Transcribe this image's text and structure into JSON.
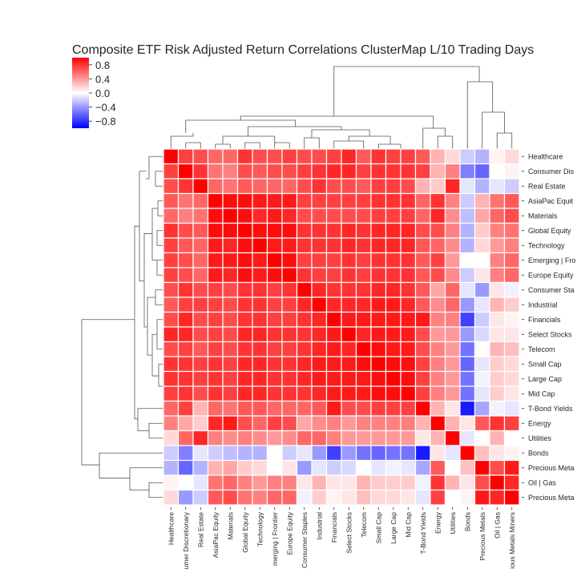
{
  "chart_data": {
    "type": "heatmap",
    "title": "Composite ETF Risk Adjusted Return Correlations ClusterMap L/10 Trading Days",
    "labels": [
      "Healthcare",
      "Consumer Discretionary",
      "Real Estate",
      "AsiaPac Equity",
      "Materials",
      "Global Equity",
      "Technology",
      "Emerging | Frontier",
      "Europe Equity",
      "Consumer Staples",
      "Industrial",
      "Financials",
      "Select Stocks",
      "Telecom",
      "Small Cap",
      "Large Cap",
      "Mid Cap",
      "T-Bond Yields",
      "Energy",
      "Utilities",
      "Bonds",
      "Precious Metals",
      "Oil | Gas",
      "Precious Metals Miners"
    ],
    "row_labels_shown": [
      "Healthcare",
      "Consumer Dis",
      "Real Estate",
      "AsiaPac Equit",
      "Materials",
      "Global Equity",
      "Technology",
      "Emerging | Fro",
      "Europe Equity",
      "Consumer Sta",
      "Industrial",
      "Financials",
      "Select Stocks",
      "Telecom",
      "Small Cap",
      "Large Cap",
      "Mid Cap",
      "T-Bond Yields",
      "Energy",
      "Utilities",
      "Bonds",
      "Precious Meta",
      "Oil | Gas",
      "Precious Meta"
    ],
    "col_labels_shown": [
      "Healthcare",
      "umer Discretionary",
      "Real Estate",
      "AsiaPac Equity",
      "Materials",
      "Global Equity",
      "Technology",
      "merging | Frontier",
      "Europe Equity",
      "Consumer Staples",
      "Industrial",
      "Financials",
      "Select Stocks",
      "Telecom",
      "Small Cap",
      "Large Cap",
      "Mid Cap",
      "T-Bond Yields",
      "Energy",
      "Utilities",
      "Bonds",
      "Precious Metals",
      "Oil | Gas",
      "ious Metals Miners"
    ],
    "values": [
      [
        1.0,
        0.75,
        0.7,
        0.6,
        0.6,
        0.8,
        0.7,
        0.7,
        0.75,
        0.7,
        0.7,
        0.75,
        0.85,
        0.65,
        0.8,
        0.75,
        0.75,
        0.65,
        0.3,
        0.15,
        -0.2,
        -0.3,
        0.05,
        0.15
      ],
      [
        0.75,
        1.0,
        0.8,
        0.55,
        0.5,
        0.7,
        0.65,
        0.7,
        0.7,
        0.75,
        0.8,
        0.85,
        0.85,
        0.75,
        0.8,
        0.8,
        0.8,
        0.75,
        0.3,
        0.5,
        -0.5,
        -0.6,
        0.0,
        0.05
      ],
      [
        0.7,
        0.8,
        1.0,
        0.6,
        0.55,
        0.65,
        0.6,
        0.6,
        0.6,
        0.7,
        0.8,
        0.7,
        0.7,
        0.65,
        0.75,
        0.75,
        0.7,
        0.3,
        0.2,
        0.85,
        -0.1,
        -0.3,
        -0.1,
        -0.2
      ],
      [
        0.65,
        0.55,
        0.6,
        1.0,
        0.95,
        0.95,
        0.9,
        0.9,
        0.9,
        0.75,
        0.75,
        0.75,
        0.75,
        0.75,
        0.8,
        0.8,
        0.8,
        0.6,
        0.8,
        0.5,
        -0.2,
        0.3,
        0.55,
        0.65
      ],
      [
        0.6,
        0.5,
        0.55,
        0.95,
        1.0,
        0.95,
        0.85,
        0.9,
        0.85,
        0.7,
        0.7,
        0.7,
        0.7,
        0.7,
        0.75,
        0.75,
        0.75,
        0.6,
        0.85,
        0.45,
        -0.25,
        0.35,
        0.6,
        0.7
      ],
      [
        0.8,
        0.7,
        0.65,
        0.95,
        0.95,
        1.0,
        0.95,
        0.95,
        0.95,
        0.8,
        0.8,
        0.8,
        0.85,
        0.8,
        0.85,
        0.85,
        0.85,
        0.7,
        0.7,
        0.5,
        -0.3,
        0.2,
        0.5,
        0.55
      ],
      [
        0.75,
        0.65,
        0.6,
        0.9,
        0.85,
        0.95,
        1.0,
        0.9,
        0.9,
        0.8,
        0.8,
        0.8,
        0.85,
        0.8,
        0.85,
        0.85,
        0.85,
        0.65,
        0.6,
        0.45,
        -0.3,
        0.15,
        0.4,
        0.5
      ],
      [
        0.75,
        0.7,
        0.6,
        0.9,
        0.9,
        0.95,
        0.9,
        1.0,
        0.95,
        0.75,
        0.75,
        0.75,
        0.8,
        0.75,
        0.8,
        0.8,
        0.8,
        0.65,
        0.75,
        0.4,
        0.0,
        0.0,
        0.5,
        0.6
      ],
      [
        0.75,
        0.7,
        0.6,
        0.9,
        0.85,
        0.95,
        0.9,
        0.95,
        1.0,
        0.8,
        0.75,
        0.75,
        0.8,
        0.75,
        0.8,
        0.8,
        0.8,
        0.65,
        0.7,
        0.45,
        -0.2,
        0.1,
        0.5,
        0.6
      ],
      [
        0.7,
        0.8,
        0.7,
        0.75,
        0.7,
        0.8,
        0.8,
        0.75,
        0.8,
        1.0,
        0.85,
        0.8,
        0.8,
        0.8,
        0.85,
        0.85,
        0.8,
        0.65,
        0.35,
        0.6,
        -0.1,
        -0.4,
        0.1,
        -0.05
      ],
      [
        0.65,
        0.75,
        0.75,
        0.75,
        0.7,
        0.8,
        0.8,
        0.75,
        0.75,
        0.85,
        1.0,
        0.85,
        0.85,
        0.85,
        0.9,
        0.9,
        0.85,
        0.65,
        0.45,
        0.6,
        -0.4,
        -0.1,
        0.3,
        0.2
      ],
      [
        0.7,
        0.85,
        0.7,
        0.75,
        0.7,
        0.8,
        0.8,
        0.75,
        0.75,
        0.8,
        0.85,
        1.0,
        0.9,
        0.9,
        0.9,
        0.9,
        0.9,
        0.9,
        0.5,
        0.5,
        -0.75,
        -0.2,
        0.1,
        0.05
      ],
      [
        0.85,
        0.85,
        0.7,
        0.75,
        0.7,
        0.85,
        0.85,
        0.8,
        0.8,
        0.8,
        0.85,
        0.9,
        1.0,
        0.85,
        0.9,
        0.9,
        0.9,
        0.7,
        0.4,
        0.4,
        -0.4,
        -0.15,
        0.1,
        0.1
      ],
      [
        0.7,
        0.75,
        0.65,
        0.75,
        0.7,
        0.8,
        0.8,
        0.75,
        0.75,
        0.8,
        0.85,
        0.9,
        0.85,
        1.0,
        0.95,
        0.9,
        0.9,
        0.7,
        0.5,
        0.4,
        -0.55,
        0.0,
        0.3,
        0.25
      ],
      [
        0.8,
        0.8,
        0.75,
        0.8,
        0.75,
        0.85,
        0.85,
        0.8,
        0.8,
        0.85,
        0.9,
        0.9,
        0.9,
        0.95,
        1.0,
        0.95,
        0.95,
        0.75,
        0.5,
        0.4,
        -0.6,
        -0.1,
        0.2,
        0.15
      ],
      [
        0.8,
        0.8,
        0.75,
        0.8,
        0.75,
        0.85,
        0.85,
        0.8,
        0.8,
        0.85,
        0.9,
        0.9,
        0.9,
        0.9,
        0.95,
        1.0,
        0.95,
        0.75,
        0.5,
        0.4,
        -0.55,
        -0.05,
        0.2,
        0.15
      ],
      [
        0.75,
        0.8,
        0.7,
        0.8,
        0.75,
        0.85,
        0.85,
        0.8,
        0.8,
        0.8,
        0.85,
        0.9,
        0.9,
        0.9,
        0.95,
        0.95,
        1.0,
        0.75,
        0.5,
        0.4,
        -0.55,
        -0.1,
        0.2,
        0.1
      ],
      [
        0.6,
        0.75,
        0.3,
        0.6,
        0.55,
        0.65,
        0.65,
        0.6,
        0.6,
        0.6,
        0.65,
        0.9,
        0.7,
        0.7,
        0.75,
        0.75,
        0.75,
        1.0,
        0.3,
        0.1,
        -0.9,
        -0.35,
        -0.05,
        -0.1
      ],
      [
        0.5,
        0.35,
        0.2,
        0.85,
        0.9,
        0.7,
        0.6,
        0.75,
        0.7,
        0.35,
        0.45,
        0.5,
        0.4,
        0.5,
        0.5,
        0.5,
        0.5,
        0.3,
        1.0,
        0.3,
        0.1,
        0.65,
        0.8,
        0.75
      ],
      [
        0.15,
        0.6,
        0.85,
        0.5,
        0.45,
        0.5,
        0.45,
        0.4,
        0.45,
        0.6,
        0.6,
        0.5,
        0.4,
        0.4,
        0.4,
        0.4,
        0.4,
        0.1,
        0.3,
        1.0,
        -0.1,
        0.0,
        0.3,
        0.0
      ],
      [
        -0.2,
        -0.5,
        -0.1,
        -0.2,
        -0.25,
        -0.3,
        -0.3,
        0.0,
        -0.2,
        -0.1,
        -0.4,
        -0.75,
        -0.4,
        -0.55,
        -0.6,
        -0.55,
        -0.55,
        -0.9,
        0.1,
        -0.1,
        1.0,
        0.25,
        0.1,
        0.05
      ],
      [
        -0.3,
        -0.6,
        -0.3,
        0.3,
        0.35,
        0.2,
        0.15,
        0.0,
        0.1,
        -0.4,
        -0.1,
        -0.2,
        -0.15,
        0.0,
        -0.1,
        -0.05,
        -0.1,
        -0.35,
        0.65,
        0.0,
        0.25,
        1.0,
        0.7,
        0.9
      ],
      [
        0.05,
        0.0,
        -0.1,
        0.55,
        0.6,
        0.5,
        0.4,
        0.5,
        0.5,
        0.1,
        0.3,
        0.1,
        0.1,
        0.3,
        0.2,
        0.2,
        0.2,
        -0.05,
        0.8,
        0.3,
        0.1,
        0.7,
        1.0,
        0.85
      ],
      [
        0.15,
        -0.4,
        -0.2,
        0.65,
        0.7,
        0.55,
        0.5,
        0.6,
        0.6,
        -0.05,
        0.2,
        0.05,
        0.1,
        0.25,
        0.15,
        0.15,
        0.1,
        -0.1,
        0.75,
        0.0,
        0.05,
        0.9,
        0.85,
        1.0
      ]
    ],
    "colorbar": {
      "ticks": [
        "0.8",
        "0.4",
        "0.0",
        "−0.4",
        "−0.8"
      ],
      "range": [
        -1,
        1
      ]
    },
    "colors": {
      "positive": "#ff0000",
      "negative": "#0000ff",
      "neutral": "#ffffff",
      "dendrogram": "#555555"
    }
  }
}
